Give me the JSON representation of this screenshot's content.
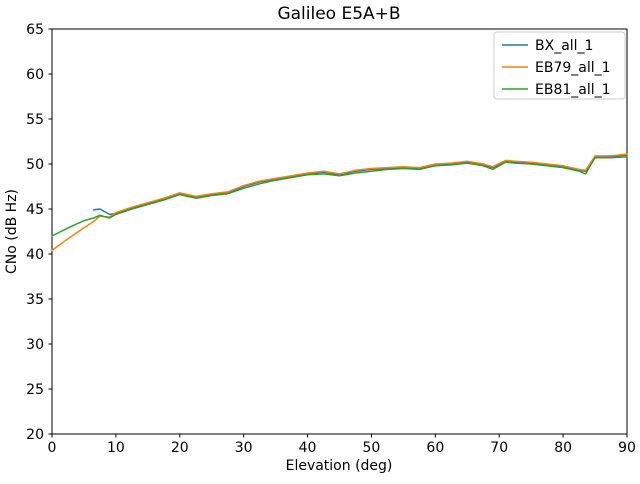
{
  "window": {
    "background": "#ffffff",
    "spine_color": "#000000",
    "legend_border_color": "#cccccc"
  },
  "chart_data": {
    "type": "line",
    "title": "Galileo E5A+B",
    "xlabel": "Elevation (deg)",
    "ylabel": "CNo (dB Hz)",
    "xlim": [
      0,
      90
    ],
    "ylim": [
      20,
      65
    ],
    "x_ticks": [
      0,
      10,
      20,
      30,
      40,
      50,
      60,
      70,
      80,
      90
    ],
    "y_ticks": [
      20,
      25,
      30,
      35,
      40,
      45,
      50,
      55,
      60,
      65
    ],
    "grid": false,
    "legend_position": "upper right",
    "x": [
      0,
      2.5,
      5,
      6.5,
      7.5,
      9,
      10,
      12.5,
      15,
      17.5,
      20,
      22.5,
      25,
      27.5,
      30,
      32.5,
      35,
      37.5,
      40,
      42.5,
      45,
      47.5,
      50,
      52.5,
      55,
      57.5,
      60,
      62.5,
      65,
      67.5,
      69,
      71,
      72.5,
      75,
      77.5,
      80,
      82.5,
      83.5,
      85,
      87.5,
      90
    ],
    "series": [
      {
        "name": "BX_all_1",
        "color": "#1f77b4",
        "values": [
          null,
          null,
          null,
          44.9,
          45.0,
          44.4,
          44.5,
          45.1,
          45.6,
          46.1,
          46.7,
          46.3,
          46.6,
          46.8,
          47.5,
          48.0,
          48.3,
          48.6,
          48.9,
          49.1,
          48.8,
          49.2,
          49.4,
          49.5,
          49.6,
          49.5,
          49.9,
          50.0,
          50.2,
          49.9,
          49.6,
          50.3,
          50.2,
          50.1,
          49.9,
          49.7,
          49.3,
          49.2,
          50.8,
          50.8,
          51.0
        ]
      },
      {
        "name": "EB79_all_1",
        "color": "#ff7f0e",
        "values": [
          40.4,
          41.7,
          42.9,
          43.6,
          44.2,
          44.1,
          44.6,
          45.2,
          45.7,
          46.2,
          46.8,
          46.4,
          46.7,
          46.9,
          47.6,
          48.1,
          48.4,
          48.7,
          49.0,
          49.2,
          48.9,
          49.3,
          49.5,
          49.6,
          49.7,
          49.6,
          50.0,
          50.1,
          50.3,
          50.0,
          49.7,
          50.4,
          50.3,
          50.2,
          50.0,
          49.8,
          49.4,
          49.3,
          50.9,
          50.9,
          51.1
        ]
      },
      {
        "name": "EB81_all_1",
        "color": "#2ca02c",
        "values": [
          42.0,
          42.9,
          43.7,
          44.0,
          44.3,
          44.0,
          44.4,
          45.0,
          45.5,
          46.0,
          46.6,
          46.2,
          46.5,
          46.7,
          47.3,
          47.8,
          48.2,
          48.5,
          48.8,
          48.9,
          48.7,
          49.0,
          49.2,
          49.4,
          49.5,
          49.4,
          49.8,
          49.9,
          50.1,
          49.8,
          49.4,
          50.2,
          50.1,
          50.0,
          49.8,
          49.6,
          49.2,
          48.9,
          50.7,
          50.7,
          50.8
        ]
      }
    ]
  }
}
